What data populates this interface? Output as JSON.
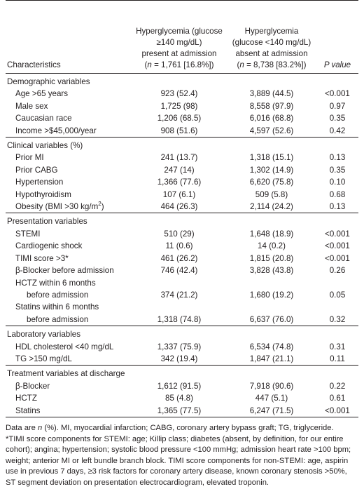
{
  "header": {
    "col1": "Characteristics",
    "col2_line1": "Hyperglycemia (glucose",
    "col2_line2": "≥140 mg/dL)",
    "col2_line3": "present at admission",
    "col2_n_prefix": "n",
    "col2_n_rest": " = 1,761 [16.8%])",
    "col3_line1": "Hyperglycemia",
    "col3_line2": "(glucose <140 mg/dL)",
    "col3_line3": "absent at admission",
    "col3_n_prefix": "n",
    "col3_n_rest": " = 8,738 [83.2%])",
    "col4": "P value"
  },
  "sections": {
    "demographic": "Demographic variables",
    "clinical": "Clinical variables (%)",
    "presentation": "Presentation variables",
    "laboratory": "Laboratory variables",
    "treatment": "Treatment variables at discharge"
  },
  "rows": {
    "age": [
      "Age >65 years",
      "923 (52.4)",
      "3,889 (44.5)",
      "<0.001"
    ],
    "male": [
      "Male sex",
      "1,725 (98)",
      "8,558 (97.9)",
      "0.97"
    ],
    "caucasian": [
      "Caucasian race",
      "1,206 (68.5)",
      "6,016 (68.8)",
      "0.35"
    ],
    "income": [
      "Income >$45,000/year",
      "908 (51.6)",
      "4,597 (52.6)",
      "0.42"
    ],
    "prior_mi": [
      "Prior MI",
      "241 (13.7)",
      "1,318 (15.1)",
      "0.13"
    ],
    "prior_cabg": [
      "Prior CABG",
      "247 (14)",
      "1,302 (14.9)",
      "0.35"
    ],
    "hypertension": [
      "Hypertension",
      "1,366 (77.6)",
      "6,620 (75.8)",
      "0.10"
    ],
    "hypothyroidism": [
      "Hypothyroidism",
      "107 (6.1)",
      "509 (5.8)",
      "0.68"
    ],
    "obesity": [
      "Obesity (BMI >30 kg/m",
      "2",
      ")",
      "464 (26.3)",
      "2,114 (24.2)",
      "0.13"
    ],
    "stemi": [
      "STEMI",
      "510 (29)",
      "1,648 (18.9)",
      "<0.001"
    ],
    "shock": [
      "Cardiogenic shock",
      "11 (0.6)",
      "14 (0.2)",
      "<0.001"
    ],
    "timi": [
      "TIMI score >3*",
      "461 (26.2)",
      "1,815 (20.8)",
      "<0.001"
    ],
    "bblocker_before": [
      "β-Blocker before admission",
      "746 (42.4)",
      "3,828 (43.8)",
      "0.26"
    ],
    "hctz_within_l1": "HCTZ within 6 months",
    "hctz_within": [
      "before admission",
      "374 (21.2)",
      "1,680 (19.2)",
      "0.05"
    ],
    "statins_within_l1": "Statins within 6 months",
    "statins_within": [
      "before admission",
      "1,318 (74.8)",
      "6,637 (76.0)",
      "0.32"
    ],
    "hdl": [
      "HDL cholesterol <40 mg/dL",
      "1,337 (75.9)",
      "6,534 (74.8)",
      "0.31"
    ],
    "tg": [
      "TG >150 mg/dL",
      "342 (19.4)",
      "1,847 (21.1)",
      "0.11"
    ],
    "bblocker": [
      "β-Blocker",
      "1,612 (91.5)",
      "7,918 (90.6)",
      "0.22"
    ],
    "hctz": [
      "HCTZ",
      "85 (4.8)",
      "447 (5.1)",
      "0.61"
    ],
    "statins": [
      "Statins",
      "1,365 (77.5)",
      "6,247 (71.5)",
      "<0.001"
    ]
  },
  "footnote": {
    "line1_a": "Data are ",
    "line1_n": "n",
    "line1_b": " (%). MI, myocardial infarction; CABG, coronary artery bypass graft; TG, triglyceride.",
    "line2": "*TIMI score components for STEMI: age; Killip class; diabetes (absent, by definition, for our entire cohort); angina; hypertension; systolic blood pressure <100 mmHg; admission heart rate >100 bpm; weight; anterior MI or left bundle branch block. TIMI score components for non-STEMI: age, aspirin use in previous 7 days, ≥3 risk factors for coronary artery disease, known coronary stenosis >50%, ST segment deviation on presentation electrocardiogram, elevated troponin."
  }
}
